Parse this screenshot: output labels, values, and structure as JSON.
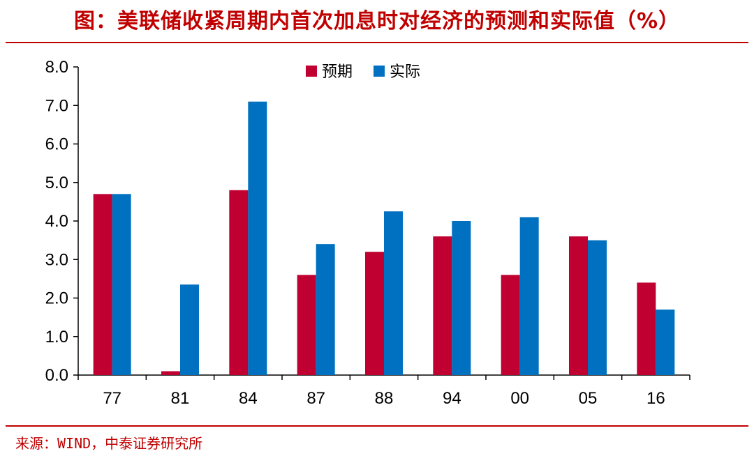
{
  "header": {
    "title": "图：美联储收紧周期内首次加息时对经济的预测和实际值（%）"
  },
  "footer": {
    "source": "来源：WIND，中泰证券研究所"
  },
  "colors": {
    "expected": "#c00031",
    "actual": "#0070c0",
    "accent": "#c00000"
  },
  "chart_data": {
    "type": "bar",
    "categories": [
      "77",
      "81",
      "84",
      "87",
      "88",
      "94",
      "00",
      "05",
      "16"
    ],
    "series": [
      {
        "name": "预期",
        "values": [
          4.7,
          0.1,
          4.8,
          2.6,
          3.2,
          3.6,
          2.6,
          3.6,
          2.4
        ]
      },
      {
        "name": "实际",
        "values": [
          4.7,
          2.35,
          7.1,
          3.4,
          4.25,
          4.0,
          4.1,
          3.5,
          1.7
        ]
      }
    ],
    "yticks": [
      "0.0",
      "1.0",
      "2.0",
      "3.0",
      "4.0",
      "5.0",
      "6.0",
      "7.0",
      "8.0"
    ],
    "ylim": [
      0,
      8
    ],
    "legend": "top-center",
    "grid": false
  }
}
